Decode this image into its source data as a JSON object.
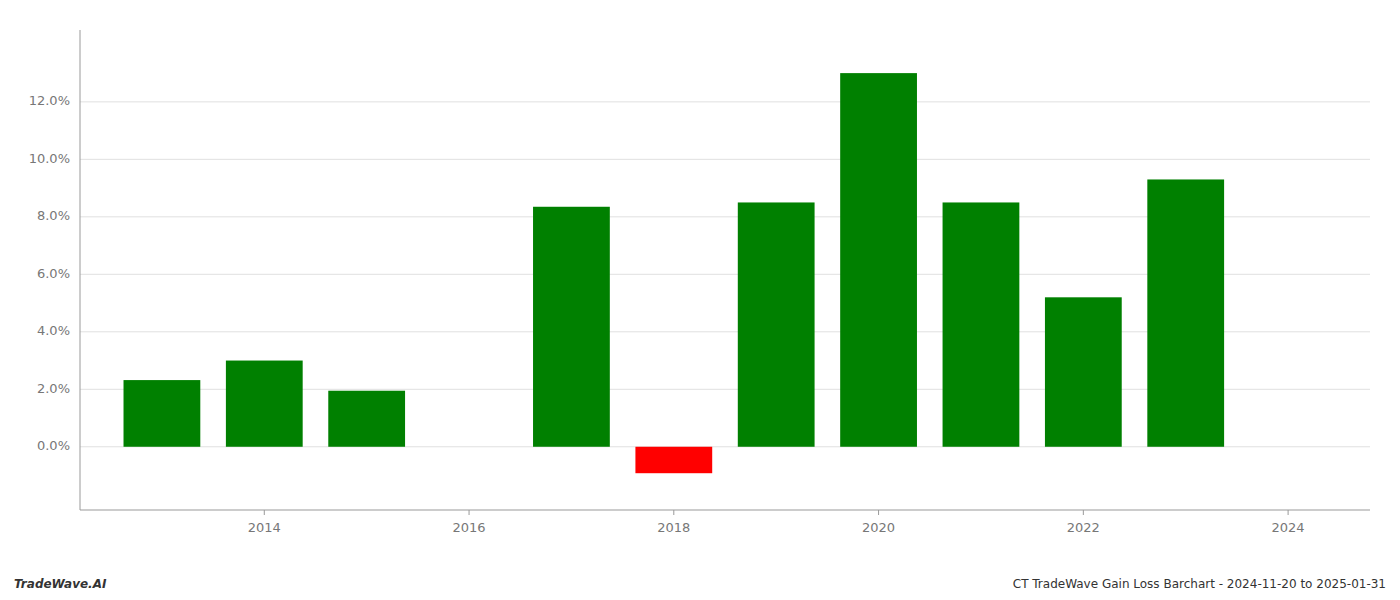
{
  "chart_data": {
    "type": "bar",
    "x": [
      2013,
      2014,
      2015,
      2017,
      2018,
      2019,
      2020,
      2021,
      2022,
      2023
    ],
    "values": [
      0.0232,
      0.03,
      0.0195,
      0.0835,
      -0.0092,
      0.085,
      0.13,
      0.085,
      0.052,
      0.093
    ],
    "colors": [
      "#008000",
      "#008000",
      "#008000",
      "#008000",
      "#ff0000",
      "#008000",
      "#008000",
      "#008000",
      "#008000",
      "#008000"
    ],
    "xlim": [
      2012.2,
      2024.8
    ],
    "ylim": [
      -0.022,
      0.145
    ],
    "xticks": [
      2014,
      2016,
      2018,
      2020,
      2022,
      2024
    ],
    "yticks": [
      {
        "value": 0.0,
        "label": "0.0%"
      },
      {
        "value": 0.02,
        "label": "2.0%"
      },
      {
        "value": 0.04,
        "label": "4.0%"
      },
      {
        "value": 0.06,
        "label": "6.0%"
      },
      {
        "value": 0.08,
        "label": "8.0%"
      },
      {
        "value": 0.1,
        "label": "10.0%"
      },
      {
        "value": 0.12,
        "label": "12.0%"
      }
    ],
    "grid": true,
    "annotations": [
      "TradeWave.AI",
      "CT TradeWave Gain Loss Barchart - 2024-11-20 to 2025-01-31"
    ]
  }
}
